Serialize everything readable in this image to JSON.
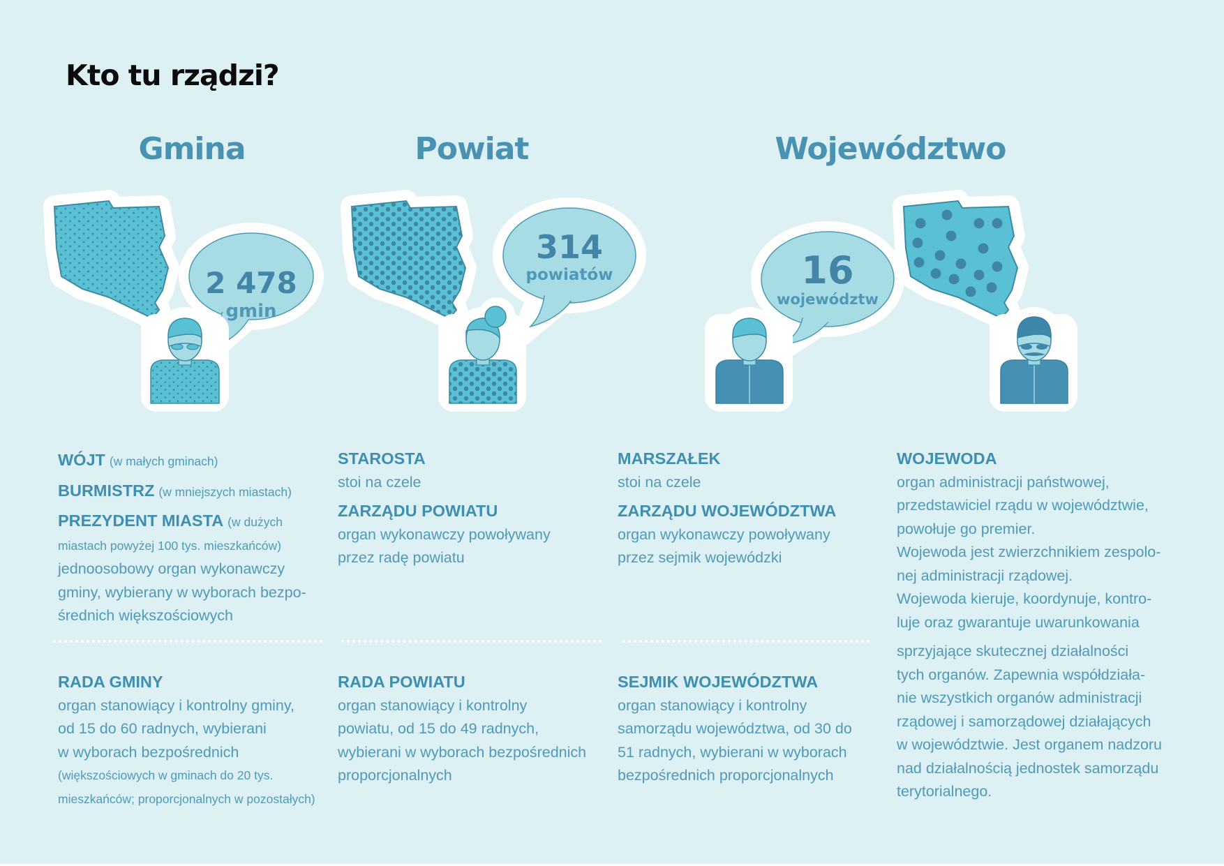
{
  "title": "Kto tu rządzi?",
  "columns": {
    "gmina": "Gmina",
    "powiat": "Powiat",
    "wojewodztwo": "Województwo"
  },
  "bubbles": {
    "gmina": {
      "number": "2 478",
      "label": "gmin"
    },
    "powiat": {
      "number": "314",
      "label": "powiatów"
    },
    "wojewodztwo": {
      "number": "16",
      "label": "województw"
    }
  },
  "gmina_exec": {
    "h1": "WÓJT",
    "s1": "(w małych gminach)",
    "h2": "BURMISTRZ",
    "s2": "(w mniejszych miastach)",
    "h3": "PREZYDENT MIASTA",
    "s3": "(w dużych",
    "s3b": "miastach powyżej 100 tys. mieszkańców)",
    "d1": "jednoosobowy organ wykonawczy",
    "d2": "gminy, wybierany w wyborach bezpo-",
    "d3": "średnich większościowych"
  },
  "powiat_exec": {
    "h1": "STAROSTA",
    "d1": "stoi na czele",
    "h2": "ZARZĄDU POWIATU",
    "d2": "organ wykonawczy powoływany",
    "d3": "przez radę powiatu"
  },
  "woj_exec": {
    "h1": "MARSZAŁEK",
    "d1": "stoi na czele",
    "h2": "ZARZĄDU WOJEWÓDZTWA",
    "d2": "organ wykonawczy powoływany",
    "d3": "przez sejmik wojewódzki"
  },
  "wojewoda": {
    "h": "WOJEWODA",
    "lines": [
      "organ administracji państwowej,",
      "przedstawiciel rządu w województwie,",
      "powołuje go premier.",
      "Wojewoda jest zwierzchnikiem zespolo-",
      "nej administracji rządowej.",
      "Wojewoda kieruje, koordynuje, kontro-",
      "luje oraz gwarantuje uwarunkowania"
    ],
    "lines2": [
      "sprzyjające skutecznej działalności",
      "tych organów. Zapewnia współdziała-",
      "nie wszystkich organów administracji",
      "rządowej i samorządowej działających",
      "w województwie. Jest organem nadzoru",
      "nad działalnością jednostek samorządu",
      "terytorialnego."
    ]
  },
  "gmina_rada": {
    "h": "RADA GMINY",
    "d1": "organ stanowiący i kontrolny gminy,",
    "d2": "od 15 do 60 radnych, wybierani",
    "d3": "w wyborach bezpośrednich",
    "s1": "(większościowych w gminach do 20 tys.",
    "s2": "mieszkańców; proporcjonalnych w pozostałych)"
  },
  "powiat_rada": {
    "h": "RADA POWIATU",
    "d1": "organ stanowiący i kontrolny",
    "d2": "powiatu, od 15 do 49 radnych,",
    "d3": "wybierani w wyborach bezpośrednich",
    "d4": "proporcjonalnych"
  },
  "woj_rada": {
    "h": "SEJMIK WOJEWÓDZTWA",
    "d1": "organ stanowiący i kontrolny",
    "d2": "samorządu województwa, od 30 do",
    "d3": "51 radnych, wybierani w wyborach",
    "d4": "bezpośrednich proporcjonalnych"
  },
  "colors": {
    "background": "#ddf0f3",
    "heading": "#4a92b1",
    "map": "#5ac0d3",
    "person_dark": "#4690b4"
  },
  "icons": [
    "poland-map-icon",
    "speech-bubble-icon",
    "person-icon"
  ]
}
